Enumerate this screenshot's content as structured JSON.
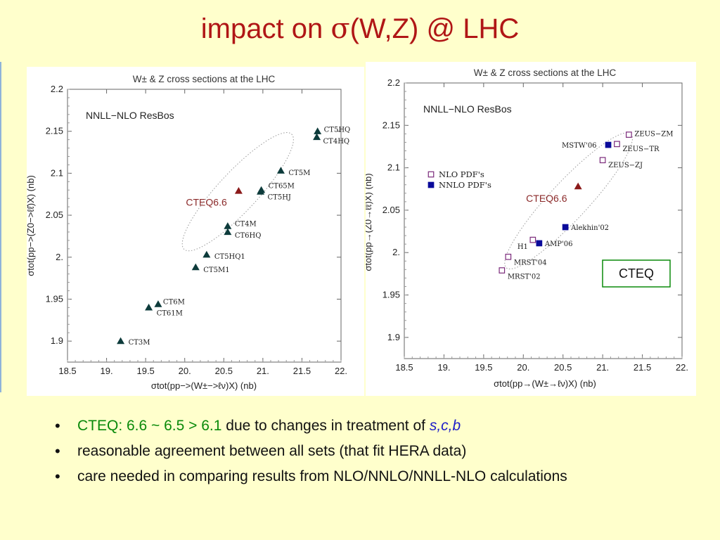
{
  "slide": {
    "title_prefix": "impact on ",
    "title_sigma": "σ",
    "title_suffix": "(W,Z) @ LHC",
    "bullets": [
      {
        "green": "CTEQ: 6.6 ~ 6.5 > 6.1",
        "text": " due to changes in treatment of ",
        "italic": "s,c,b"
      },
      {
        "text": "reasonable agreement between all sets (that fit HERA data)"
      },
      {
        "text": "care needed in comparing results from NLO/NNLO/NNLL-NLO calculations"
      }
    ]
  },
  "colors": {
    "title": "#b01616",
    "bullet_green": "#0a8a0a",
    "italic_blue": "#1c1cc8",
    "cteq_box": "#0a8a0a",
    "cteq66_marker": "#8b1a1a",
    "left_markers": "#0d3b3b",
    "nlo_marker": "#7b2a7b",
    "nnlo_marker": "#0a0a9a"
  },
  "chart_data": [
    {
      "type": "scatter",
      "title": "W± & Z cross sections at the LHC",
      "subtitle": "NNLL−NLO ResBos",
      "xlabel": "σtot(pp−>(W±−>ℓν)X) (nb)",
      "ylabel": "σtot(pp−>(Z0−>ℓℓ̄)X) (nb)",
      "xlim": [
        18.5,
        22.0
      ],
      "ylim": [
        1.875,
        2.2
      ],
      "xticks": [
        "18.5",
        "19.",
        "19.5",
        "20.",
        "20.5",
        "21.",
        "21.5",
        "22."
      ],
      "yticks": [
        "1.9",
        "1.95",
        "2.",
        "2.05",
        "2.1",
        "2.15",
        "2.2"
      ],
      "annotation": "CTEQ6.6",
      "ellipse": "CTEQ6.6 uncertainty",
      "points": [
        {
          "label": "CT5HQ",
          "x": 21.7,
          "y": 2.15
        },
        {
          "label": "CT4HQ",
          "x": 21.69,
          "y": 2.143
        },
        {
          "label": "CT5M",
          "x": 21.23,
          "y": 2.103
        },
        {
          "label": "CT65M",
          "x": 20.98,
          "y": 2.08
        },
        {
          "label": "CT5HJ",
          "x": 20.97,
          "y": 2.078
        },
        {
          "label": "CT4M",
          "x": 20.55,
          "y": 2.037
        },
        {
          "label": "CT6HQ",
          "x": 20.55,
          "y": 2.03
        },
        {
          "label": "CT5HQ1",
          "x": 20.28,
          "y": 2.003
        },
        {
          "label": "CT5M1",
          "x": 20.14,
          "y": 1.988
        },
        {
          "label": "CT6M",
          "x": 19.66,
          "y": 1.944
        },
        {
          "label": "CT61M",
          "x": 19.54,
          "y": 1.94
        },
        {
          "label": "CT3M",
          "x": 19.18,
          "y": 1.9
        },
        {
          "label": "CTEQ6.6",
          "x": 20.69,
          "y": 2.079
        }
      ]
    },
    {
      "type": "scatter",
      "title": "W± & Z cross sections at the LHC",
      "subtitle": "NNLL−NLO ResBos",
      "xlabel": "σtot(pp→(W±→ℓν)X) (nb)",
      "ylabel": "σtot(pp→(Z0→ℓℓ̄)X) (nb)",
      "xlim": [
        18.5,
        22.0
      ],
      "ylim": [
        1.875,
        2.2
      ],
      "xticks": [
        "18.5",
        "19.",
        "19.5",
        "20.",
        "20.5",
        "21.",
        "21.5",
        "22."
      ],
      "yticks": [
        "1.9",
        "1.95",
        "2.",
        "2.05",
        "2.1",
        "2.15",
        "2.2"
      ],
      "annotation": "CTEQ6.6",
      "box_label": "CTEQ",
      "series": [
        {
          "name": "NLO PDF's",
          "marker": "open-square",
          "points": [
            {
              "label": "ZEUS−ZM",
              "x": 21.33,
              "y": 2.139
            },
            {
              "label": "ZEUS−TR",
              "x": 21.18,
              "y": 2.128
            },
            {
              "label": "ZEUS−ZJ",
              "x": 21.0,
              "y": 2.109
            },
            {
              "label": "H1",
              "x": 20.12,
              "y": 2.015
            },
            {
              "label": "MRST'04",
              "x": 19.81,
              "y": 1.995
            },
            {
              "label": "MRST'02",
              "x": 19.73,
              "y": 1.979
            }
          ]
        },
        {
          "name": "NNLO PDF's",
          "marker": "filled-square",
          "points": [
            {
              "label": "MSTW'06",
              "x": 21.07,
              "y": 2.127
            },
            {
              "label": "Alekhin'02",
              "x": 20.53,
              "y": 2.03
            },
            {
              "label": "AMP'06",
              "x": 20.2,
              "y": 2.011
            }
          ]
        },
        {
          "name": "CTEQ6.6",
          "marker": "triangle",
          "points": [
            {
              "label": "CTEQ6.6",
              "x": 20.69,
              "y": 2.078
            }
          ]
        }
      ]
    }
  ]
}
